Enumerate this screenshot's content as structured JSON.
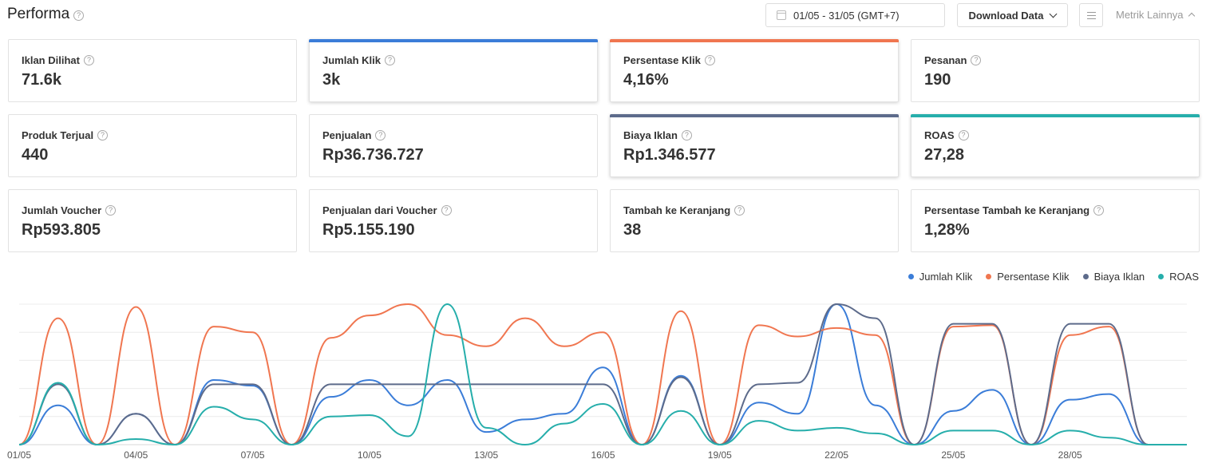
{
  "header": {
    "title": "Performa",
    "date_range": "01/05 - 31/05 (GMT+7)",
    "download_label": "Download Data",
    "more_metrics_label": "Metrik Lainnya"
  },
  "metrics": [
    {
      "label": "Iklan Dilihat",
      "value": "71.6k",
      "selected": false,
      "color": ""
    },
    {
      "label": "Jumlah Klik",
      "value": "3k",
      "selected": true,
      "color": "#3b7dd8"
    },
    {
      "label": "Persentase Klik",
      "value": "4,16%",
      "selected": true,
      "color": "#f07650"
    },
    {
      "label": "Pesanan",
      "value": "190",
      "selected": false,
      "color": ""
    },
    {
      "label": "Produk Terjual",
      "value": "440",
      "selected": false,
      "color": ""
    },
    {
      "label": "Penjualan",
      "value": "Rp36.736.727",
      "selected": false,
      "color": ""
    },
    {
      "label": "Biaya Iklan",
      "value": "Rp1.346.577",
      "selected": true,
      "color": "#5d6b8b"
    },
    {
      "label": "ROAS",
      "value": "27,28",
      "selected": true,
      "color": "#26aeab"
    },
    {
      "label": "Jumlah Voucher",
      "value": "Rp593.805",
      "selected": false,
      "color": ""
    },
    {
      "label": "Penjualan dari Voucher",
      "value": "Rp5.155.190",
      "selected": false,
      "color": ""
    },
    {
      "label": "Tambah ke Keranjang",
      "value": "38",
      "selected": false,
      "color": ""
    },
    {
      "label": "Persentase Tambah ke Keranjang",
      "value": "1,28%",
      "selected": false,
      "color": ""
    }
  ],
  "chart_data": {
    "type": "line",
    "x": [
      "01/05",
      "02/05",
      "03/05",
      "04/05",
      "05/05",
      "06/05",
      "07/05",
      "08/05",
      "09/05",
      "10/05",
      "11/05",
      "12/05",
      "13/05",
      "14/05",
      "15/05",
      "16/05",
      "17/05",
      "18/05",
      "19/05",
      "20/05",
      "21/05",
      "22/05",
      "23/05",
      "24/05",
      "25/05",
      "26/05",
      "27/05",
      "28/05",
      "29/05",
      "30/05",
      "31/05"
    ],
    "x_tick_labels": [
      "01/05",
      "04/05",
      "07/05",
      "10/05",
      "13/05",
      "16/05",
      "19/05",
      "22/05",
      "25/05",
      "28/05"
    ],
    "legend_position": "top-right",
    "grid": true,
    "ylim": [
      0,
      5
    ],
    "series": [
      {
        "name": "Jumlah Klik",
        "color": "#3b7dd8",
        "values": [
          0,
          1.4,
          0,
          1.1,
          0,
          2.3,
          2.1,
          0,
          1.7,
          2.3,
          1.4,
          2.3,
          0.45,
          0.9,
          1.1,
          2.75,
          0,
          2.45,
          0,
          1.5,
          1.1,
          5.0,
          1.4,
          0,
          1.2,
          1.95,
          0,
          1.6,
          1.8,
          0,
          0
        ]
      },
      {
        "name": "Persentase Klik",
        "color": "#f07650",
        "values": [
          0,
          4.5,
          0,
          4.9,
          0,
          4.2,
          4.0,
          0,
          3.8,
          4.6,
          5.0,
          3.9,
          3.5,
          4.5,
          3.5,
          4.0,
          0,
          4.75,
          0,
          4.25,
          3.85,
          4.15,
          3.9,
          0,
          4.2,
          4.25,
          0,
          3.9,
          4.2,
          0,
          0
        ]
      },
      {
        "name": "Biaya Iklan",
        "color": "#5d6b8b",
        "values": [
          0,
          2.15,
          0,
          1.1,
          0,
          2.15,
          2.15,
          0,
          2.15,
          2.15,
          2.15,
          2.15,
          2.15,
          2.15,
          2.15,
          2.15,
          0,
          2.4,
          0,
          2.15,
          2.2,
          5.0,
          4.5,
          0,
          4.3,
          4.3,
          0,
          4.3,
          4.3,
          0,
          0
        ]
      },
      {
        "name": "ROAS",
        "color": "#26aeab",
        "values": [
          0,
          2.2,
          0,
          0.2,
          0,
          1.35,
          0.9,
          0,
          1.0,
          1.05,
          0.3,
          5.0,
          0.6,
          0,
          0.75,
          1.45,
          0,
          1.2,
          0,
          0.85,
          0.5,
          0.6,
          0.4,
          0,
          0.5,
          0.5,
          0,
          0.5,
          0.25,
          0,
          0
        ]
      }
    ]
  }
}
